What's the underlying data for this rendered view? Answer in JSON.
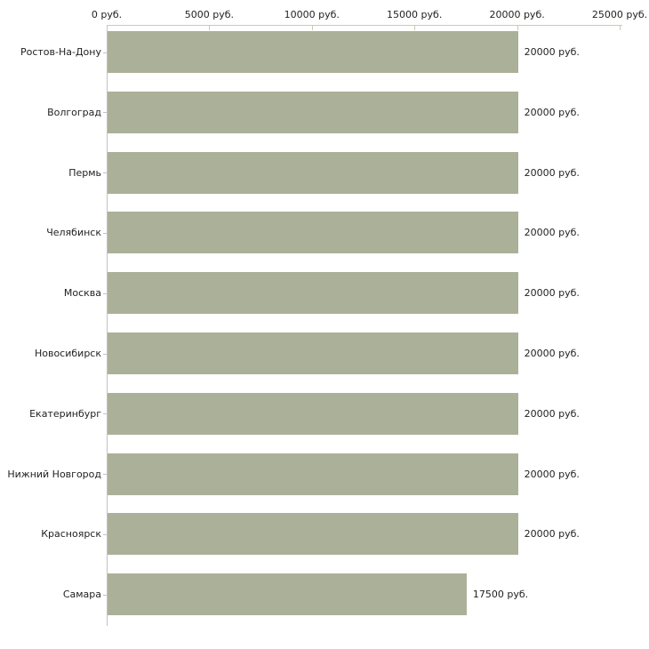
{
  "chart_data": {
    "type": "bar",
    "orientation": "horizontal",
    "title": "",
    "xlabel": "",
    "ylabel": "",
    "categories": [
      "Ростов-На-Дону",
      "Волгоград",
      "Пермь",
      "Челябинск",
      "Москва",
      "Новосибирск",
      "Екатеринбург",
      "Нижний Новгород",
      "Красноярск",
      "Самара"
    ],
    "values": [
      20000,
      20000,
      20000,
      20000,
      20000,
      20000,
      20000,
      20000,
      20000,
      17500
    ],
    "value_labels": [
      "20000 руб.",
      "20000 руб.",
      "20000 руб.",
      "20000 руб.",
      "20000 руб.",
      "20000 руб.",
      "20000 руб.",
      "20000 руб.",
      "20000 руб.",
      "17500 руб."
    ],
    "x_ticks": [
      0,
      5000,
      10000,
      15000,
      20000,
      25000
    ],
    "x_tick_labels": [
      "0 руб.",
      "5000 руб.",
      "10000 руб.",
      "15000 руб.",
      "20000 руб.",
      "25000 руб."
    ],
    "xlim": [
      0,
      25000
    ],
    "unit": "руб.",
    "axis_position": "top",
    "grid": false,
    "legend": false,
    "bar_color": "#abb198",
    "x_axis_color": "#c9ccb2",
    "y_axis_color": "#c2c2c2",
    "text_color": "#222222"
  }
}
